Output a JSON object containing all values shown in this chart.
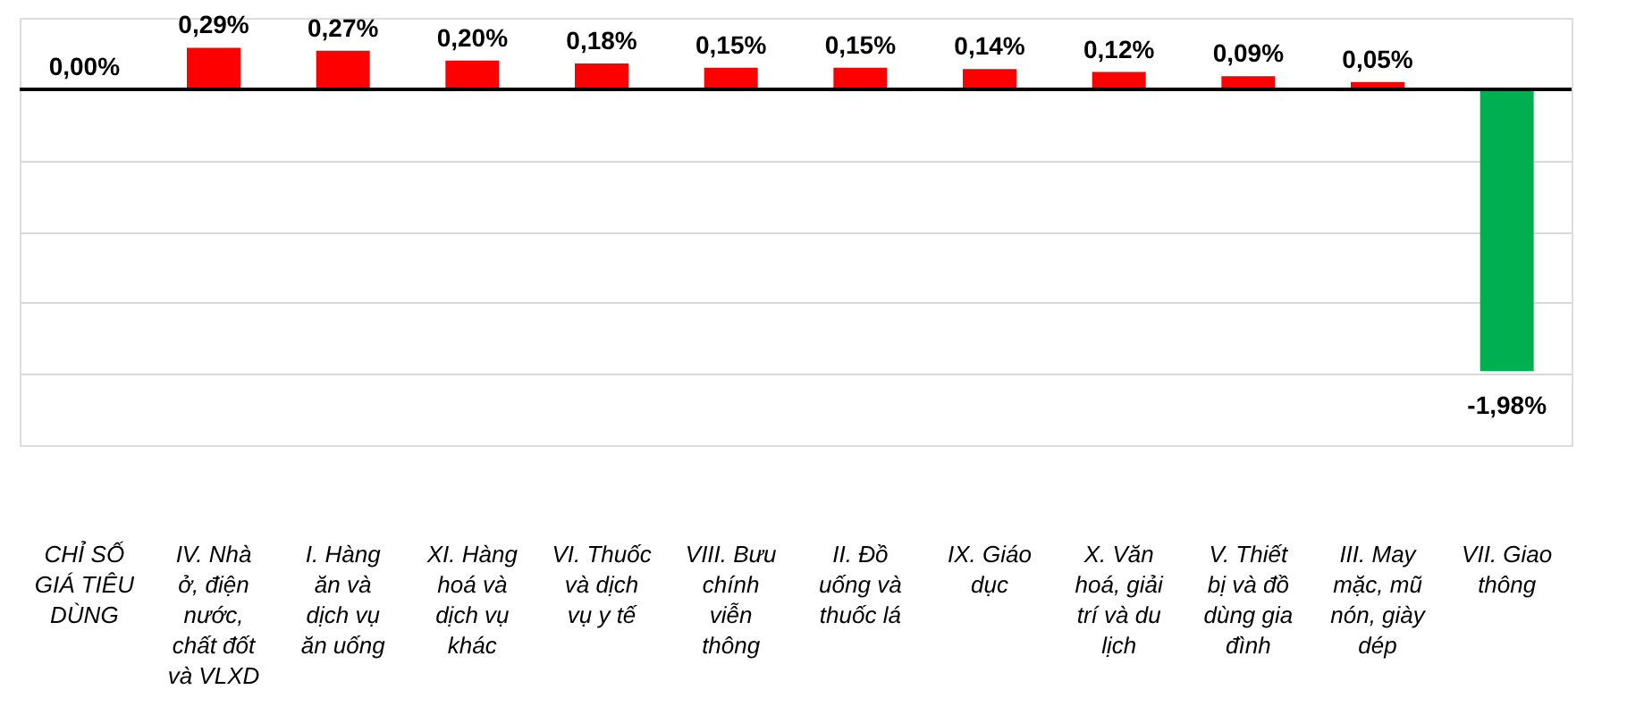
{
  "chart_data": {
    "type": "bar",
    "categories": [
      "CHỈ SỐ GIÁ TIÊU DÙNG",
      "IV. Nhà ở, điện nước, chất đốt và VLXD",
      "I. Hàng ăn và dịch vụ ăn uống",
      "XI. Hàng hoá và dịch vụ khác",
      "VI. Thuốc và dịch vụ y tế",
      "VIII. Bưu chính viễn thông",
      "II. Đồ uống và thuốc lá",
      "IX. Giáo dục",
      "X. Văn hoá, giải trí và du lịch",
      "V. Thiết bị và đồ dùng gia đình",
      "III. May mặc, mũ nón, giày dép",
      "VII. Giao thông"
    ],
    "values": [
      0.0,
      0.29,
      0.27,
      0.2,
      0.18,
      0.15,
      0.15,
      0.14,
      0.12,
      0.09,
      0.05,
      -1.98
    ],
    "colors": [
      "#ff0000",
      "#ff0000",
      "#ff0000",
      "#ff0000",
      "#ff0000",
      "#ff0000",
      "#ff0000",
      "#ff0000",
      "#ff0000",
      "#ff0000",
      "#ff0000",
      "#00b050"
    ],
    "value_labels": [
      "0,00%",
      "0,29%",
      "0,27%",
      "0,20%",
      "0,18%",
      "0,15%",
      "0,15%",
      "0,14%",
      "0,12%",
      "0,09%",
      "0,05%",
      "-1,98%"
    ],
    "ylim": [
      -2.5,
      0.5
    ],
    "yticks": [
      {
        "value": -2.0,
        "label": null
      },
      {
        "value": -1.5,
        "label": null
      },
      {
        "value": -1.0,
        "label": null
      },
      {
        "value": -0.5,
        "label": null
      },
      {
        "value": 0,
        "label": null
      }
    ],
    "grid": "y",
    "tick_labels": "x"
  }
}
